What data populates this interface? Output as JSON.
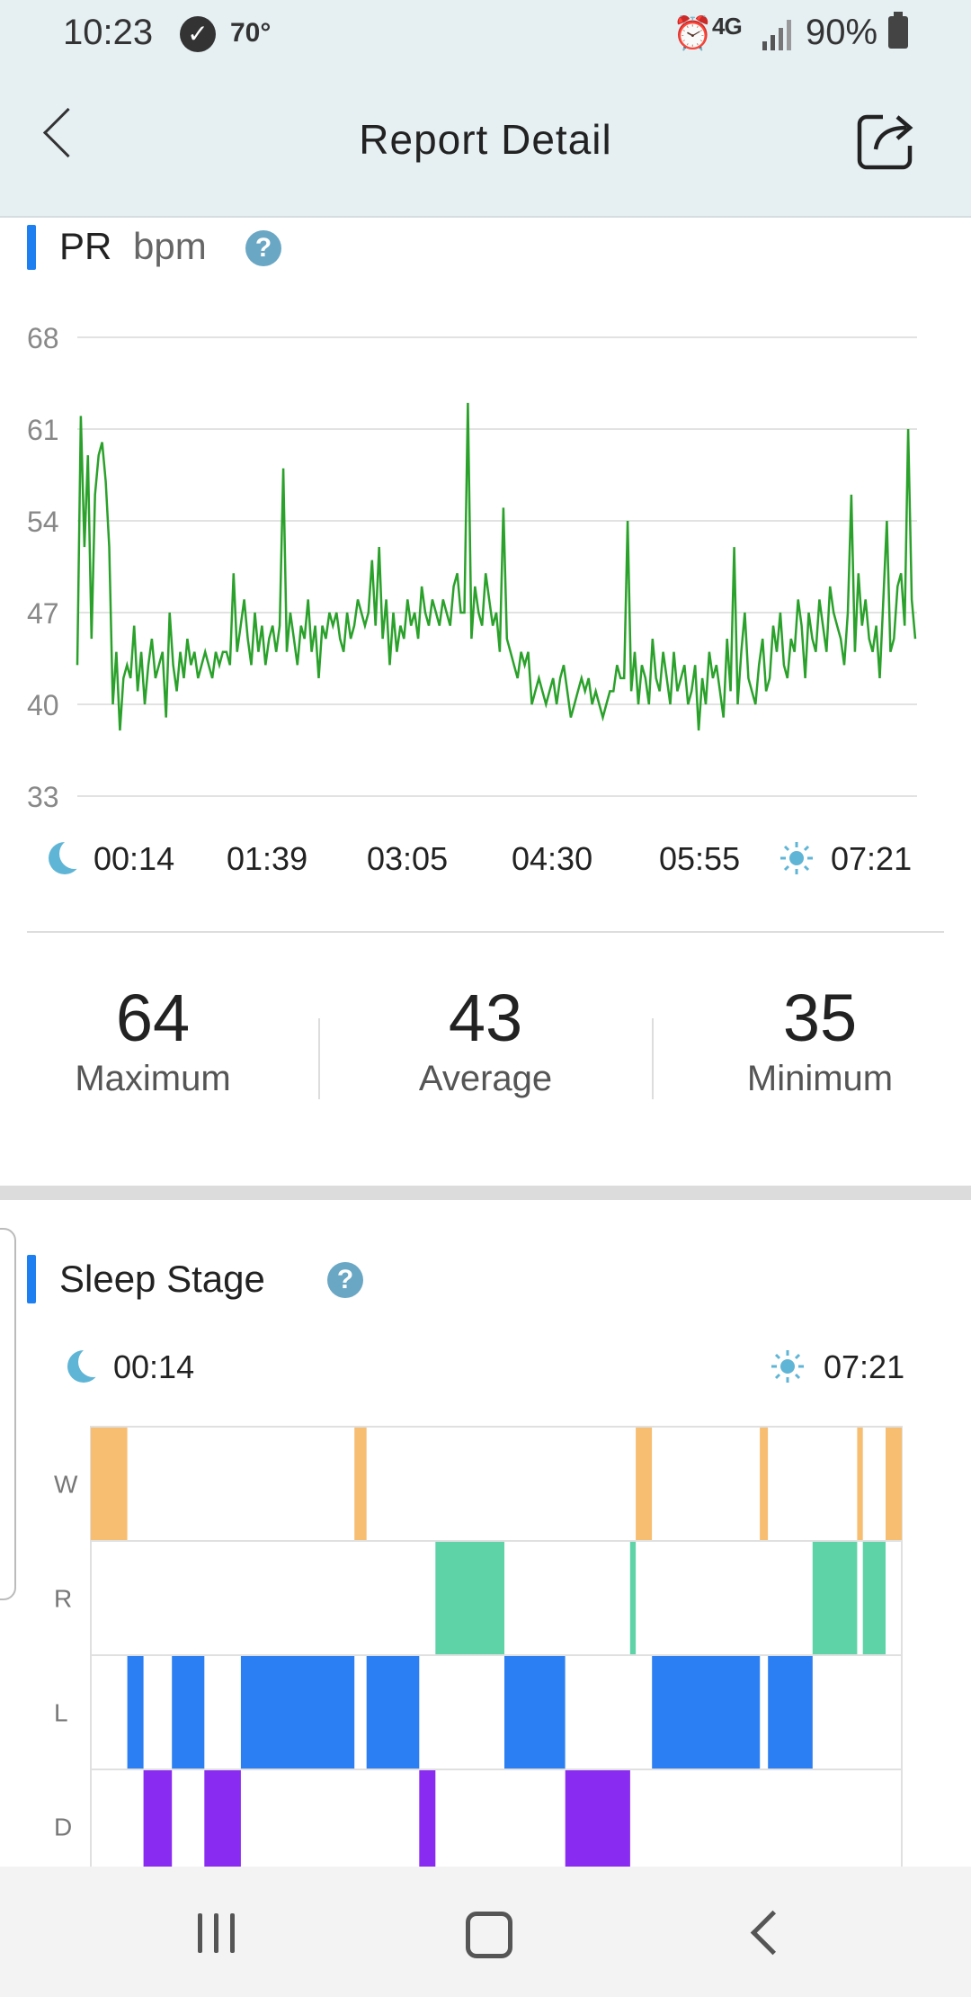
{
  "status_bar": {
    "time": "10:23",
    "temperature": "70°",
    "network": "4G",
    "battery": "90%"
  },
  "app_bar": {
    "title": "Report Detail"
  },
  "pr_section": {
    "title": "PR",
    "unit": "bpm",
    "help": "?",
    "chart_data": {
      "type": "line",
      "ylabel": "",
      "xlabel": "",
      "ylim": [
        33,
        68
      ],
      "yticks": [
        "68",
        "61",
        "54",
        "47",
        "40",
        "33"
      ],
      "xticks": [
        "00:14",
        "01:39",
        "03:05",
        "04:30",
        "05:55",
        "07:21"
      ],
      "grid": true,
      "line_color": "#2aa12a",
      "series": [
        {
          "values": [
            43,
            62,
            52,
            59,
            45,
            56,
            59,
            60,
            57,
            52,
            40,
            44,
            38,
            42,
            43,
            42,
            46,
            41,
            44,
            40,
            43,
            45,
            42,
            43,
            44,
            39,
            47,
            43,
            41,
            44,
            42,
            45,
            43,
            44,
            42,
            43,
            44,
            43,
            42,
            44,
            43,
            44,
            44,
            43,
            50,
            44,
            46,
            48,
            45,
            43,
            47,
            44,
            46,
            43,
            45,
            46,
            44,
            46,
            58,
            44,
            47,
            45,
            43,
            46,
            45,
            48,
            44,
            46,
            42,
            46,
            45,
            47,
            46,
            47,
            45,
            44,
            47,
            45,
            46,
            48,
            47,
            46,
            47,
            51,
            46,
            52,
            45,
            48,
            43,
            47,
            44,
            46,
            45,
            48,
            46,
            47,
            45,
            49,
            47,
            46,
            48,
            47,
            46,
            48,
            47,
            46,
            49,
            50,
            47,
            47,
            63,
            45,
            49,
            47,
            46,
            50,
            48,
            46,
            47,
            44,
            55,
            45,
            44,
            43,
            42,
            44,
            43,
            44,
            40,
            41,
            42,
            41,
            40,
            41,
            42,
            40,
            42,
            43,
            41,
            39,
            40,
            41,
            42,
            41,
            42,
            40,
            41,
            40,
            39,
            40,
            41,
            41,
            43,
            42,
            42,
            54,
            41,
            44,
            40,
            43,
            42,
            40,
            45,
            42,
            41,
            44,
            42,
            40,
            44,
            41,
            42,
            43,
            40,
            41,
            43,
            38,
            42,
            40,
            44,
            42,
            43,
            41,
            39,
            45,
            41,
            52,
            40,
            44,
            47,
            42,
            41,
            40,
            43,
            45,
            41,
            42,
            46,
            44,
            47,
            43,
            42,
            45,
            44,
            48,
            46,
            42,
            47,
            45,
            44,
            48,
            46,
            44,
            49,
            47,
            46,
            45,
            43,
            47,
            56,
            44,
            50,
            46,
            48,
            45,
            44,
            46,
            42,
            48,
            54,
            44,
            45,
            49,
            50,
            46,
            61,
            48,
            45
          ]
        }
      ]
    }
  },
  "pr_stats": [
    {
      "value": "64",
      "label": "Maximum"
    },
    {
      "value": "43",
      "label": "Average"
    },
    {
      "value": "35",
      "label": "Minimum"
    }
  ],
  "sleep_section": {
    "title": "Sleep Stage",
    "help": "?",
    "start_time": "00:14",
    "end_time": "07:21",
    "stage_labels": [
      "W",
      "R",
      "L",
      "D"
    ],
    "colors": {
      "W": "#f7be72",
      "R": "#5fd3a8",
      "L": "#2b7ff2",
      "D": "#8a2bf2"
    },
    "segments": [
      {
        "stage": "W",
        "start": 0.0,
        "end": 0.045
      },
      {
        "stage": "L",
        "start": 0.045,
        "end": 0.065
      },
      {
        "stage": "D",
        "start": 0.065,
        "end": 0.1
      },
      {
        "stage": "L",
        "start": 0.1,
        "end": 0.14
      },
      {
        "stage": "D",
        "start": 0.14,
        "end": 0.185
      },
      {
        "stage": "L",
        "start": 0.185,
        "end": 0.325
      },
      {
        "stage": "W",
        "start": 0.325,
        "end": 0.34
      },
      {
        "stage": "L",
        "start": 0.34,
        "end": 0.405
      },
      {
        "stage": "D",
        "start": 0.405,
        "end": 0.425
      },
      {
        "stage": "R",
        "start": 0.425,
        "end": 0.51
      },
      {
        "stage": "L",
        "start": 0.51,
        "end": 0.585
      },
      {
        "stage": "D",
        "start": 0.585,
        "end": 0.665
      },
      {
        "stage": "R",
        "start": 0.665,
        "end": 0.672
      },
      {
        "stage": "W",
        "start": 0.672,
        "end": 0.692
      },
      {
        "stage": "L",
        "start": 0.692,
        "end": 0.825
      },
      {
        "stage": "W",
        "start": 0.825,
        "end": 0.835
      },
      {
        "stage": "L",
        "start": 0.835,
        "end": 0.89
      },
      {
        "stage": "R",
        "start": 0.89,
        "end": 0.945
      },
      {
        "stage": "W",
        "start": 0.945,
        "end": 0.952
      },
      {
        "stage": "R",
        "start": 0.952,
        "end": 0.98
      },
      {
        "stage": "W",
        "start": 0.98,
        "end": 1.0
      }
    ]
  }
}
